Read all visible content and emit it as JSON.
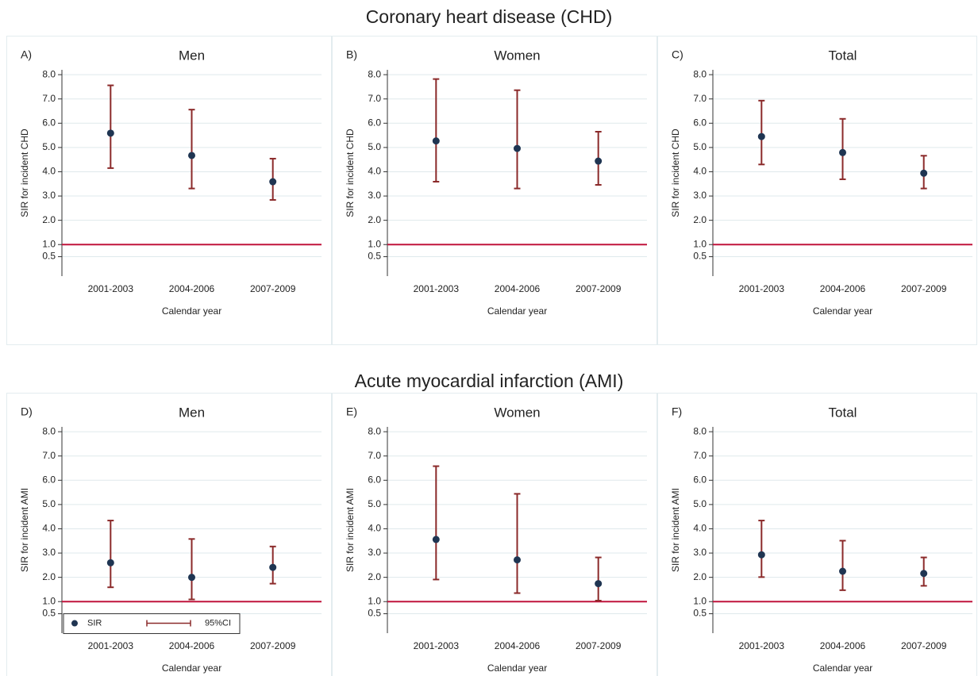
{
  "sections": [
    "Coronary heart disease (CHD)",
    "Acute myocardial infarction (AMI)"
  ],
  "chart_data": [
    {
      "type": "errorbar",
      "panel_label": "A)",
      "title": "Men",
      "y_label": "SIR for incident CHD",
      "x_label": "Calendar year",
      "categories": [
        "2001-2003",
        "2004-2006",
        "2007-2009"
      ],
      "series": [
        {
          "color": "#1f3552",
          "ci_color": "#8b2a2a",
          "values": [
            5.59,
            4.67,
            3.59
          ],
          "lower": [
            4.15,
            3.31,
            2.84
          ],
          "upper": [
            7.56,
            6.56,
            4.54
          ]
        }
      ],
      "reference_line": {
        "value": 1,
        "color": "#c0143c"
      },
      "ylim": [
        -0.3,
        8.2
      ],
      "yticks": [
        0.5,
        {
          "value": 1,
          "label": "1.0"
        },
        {
          "value": 2,
          "label": "2.0"
        },
        {
          "value": 3,
          "label": "3.0"
        },
        {
          "value": 4,
          "label": "4.0"
        },
        {
          "value": 5,
          "label": "5.0"
        },
        {
          "value": 6,
          "label": "6.0"
        },
        {
          "value": 7,
          "label": "7.0"
        },
        {
          "value": 8,
          "label": "8.0"
        }
      ],
      "grid": true
    },
    {
      "type": "errorbar",
      "panel_label": "B)",
      "title": "Women",
      "y_label": "SIR for incident CHD",
      "x_label": "Calendar year",
      "categories": [
        "2001-2003",
        "2004-2006",
        "2007-2009"
      ],
      "series": [
        {
          "color": "#1f3552",
          "ci_color": "#8b2a2a",
          "values": [
            5.27,
            4.96,
            4.44
          ],
          "lower": [
            3.59,
            3.31,
            3.46
          ],
          "upper": [
            7.82,
            7.36,
            5.65
          ]
        }
      ],
      "reference_line": {
        "value": 1,
        "color": "#c0143c"
      },
      "ylim": [
        -0.3,
        8.2
      ],
      "yticks": [
        0.5,
        {
          "value": 1,
          "label": "1.0"
        },
        {
          "value": 2,
          "label": "2.0"
        },
        {
          "value": 3,
          "label": "3.0"
        },
        {
          "value": 4,
          "label": "4.0"
        },
        {
          "value": 5,
          "label": "5.0"
        },
        {
          "value": 6,
          "label": "6.0"
        },
        {
          "value": 7,
          "label": "7.0"
        },
        {
          "value": 8,
          "label": "8.0"
        }
      ],
      "grid": true
    },
    {
      "type": "errorbar",
      "panel_label": "C)",
      "title": "Total",
      "y_label": "SIR for incident CHD",
      "x_label": "Calendar year",
      "categories": [
        "2001-2003",
        "2004-2006",
        "2007-2009"
      ],
      "series": [
        {
          "color": "#1f3552",
          "ci_color": "#8b2a2a",
          "values": [
            5.45,
            4.79,
            3.94
          ],
          "lower": [
            4.3,
            3.69,
            3.31
          ],
          "upper": [
            6.93,
            6.18,
            4.66
          ]
        }
      ],
      "reference_line": {
        "value": 1,
        "color": "#c0143c"
      },
      "ylim": [
        -0.3,
        8.2
      ],
      "yticks": [
        0.5,
        {
          "value": 1,
          "label": "1.0"
        },
        {
          "value": 2,
          "label": "2.0"
        },
        {
          "value": 3,
          "label": "3.0"
        },
        {
          "value": 4,
          "label": "4.0"
        },
        {
          "value": 5,
          "label": "5.0"
        },
        {
          "value": 6,
          "label": "6.0"
        },
        {
          "value": 7,
          "label": "7.0"
        },
        {
          "value": 8,
          "label": "8.0"
        }
      ],
      "grid": true
    },
    {
      "type": "errorbar",
      "panel_label": "D)",
      "title": "Men",
      "y_label": "SIR for incident AMI",
      "x_label": "Calendar year",
      "categories": [
        "2001-2003",
        "2004-2006",
        "2007-2009"
      ],
      "series": [
        {
          "name": "SIR",
          "ci_name": "95%CI",
          "color": "#1f3552",
          "ci_color": "#8b2a2a",
          "values": [
            2.6,
            2.0,
            2.41
          ],
          "lower": [
            1.59,
            1.09,
            1.74
          ],
          "upper": [
            4.34,
            3.58,
            3.27
          ]
        }
      ],
      "reference_line": {
        "value": 1,
        "color": "#c0143c"
      },
      "ylim": [
        -0.3,
        8.2
      ],
      "yticks": [
        0.5,
        {
          "value": 1,
          "label": "1.0"
        },
        {
          "value": 2,
          "label": "2.0"
        },
        {
          "value": 3,
          "label": "3.0"
        },
        {
          "value": 4,
          "label": "4.0"
        },
        {
          "value": 5,
          "label": "5.0"
        },
        {
          "value": 6,
          "label": "6.0"
        },
        {
          "value": 7,
          "label": "7.0"
        },
        {
          "value": 8,
          "label": "8.0"
        }
      ],
      "grid": true
    },
    {
      "type": "errorbar",
      "panel_label": "E)",
      "title": "Women",
      "y_label": "SIR for incident AMI",
      "x_label": "Calendar year",
      "categories": [
        "2001-2003",
        "2004-2006",
        "2007-2009"
      ],
      "series": [
        {
          "color": "#1f3552",
          "ci_color": "#8b2a2a",
          "values": [
            3.56,
            2.72,
            1.74
          ],
          "lower": [
            1.91,
            1.35,
            1.04
          ],
          "upper": [
            6.58,
            5.44,
            2.82
          ]
        }
      ],
      "reference_line": {
        "value": 1,
        "color": "#c0143c"
      },
      "ylim": [
        -0.3,
        8.2
      ],
      "yticks": [
        0.5,
        {
          "value": 1,
          "label": "1.0"
        },
        {
          "value": 2,
          "label": "2.0"
        },
        {
          "value": 3,
          "label": "3.0"
        },
        {
          "value": 4,
          "label": "4.0"
        },
        {
          "value": 5,
          "label": "5.0"
        },
        {
          "value": 6,
          "label": "6.0"
        },
        {
          "value": 7,
          "label": "7.0"
        },
        {
          "value": 8,
          "label": "8.0"
        }
      ],
      "grid": true
    },
    {
      "type": "errorbar",
      "panel_label": "F)",
      "title": "Total",
      "y_label": "SIR for incident AMI",
      "x_label": "Calendar year",
      "categories": [
        "2001-2003",
        "2004-2006",
        "2007-2009"
      ],
      "series": [
        {
          "color": "#1f3552",
          "ci_color": "#8b2a2a",
          "values": [
            2.93,
            2.25,
            2.16
          ],
          "lower": [
            2.01,
            1.47,
            1.65
          ],
          "upper": [
            4.34,
            3.51,
            2.82
          ]
        }
      ],
      "reference_line": {
        "value": 1,
        "color": "#c0143c"
      },
      "ylim": [
        -0.3,
        8.2
      ],
      "yticks": [
        0.5,
        {
          "value": 1,
          "label": "1.0"
        },
        {
          "value": 2,
          "label": "2.0"
        },
        {
          "value": 3,
          "label": "3.0"
        },
        {
          "value": 4,
          "label": "4.0"
        },
        {
          "value": 5,
          "label": "5.0"
        },
        {
          "value": 6,
          "label": "6.0"
        },
        {
          "value": 7,
          "label": "7.0"
        },
        {
          "value": 8,
          "label": "8.0"
        }
      ],
      "grid": true
    }
  ]
}
